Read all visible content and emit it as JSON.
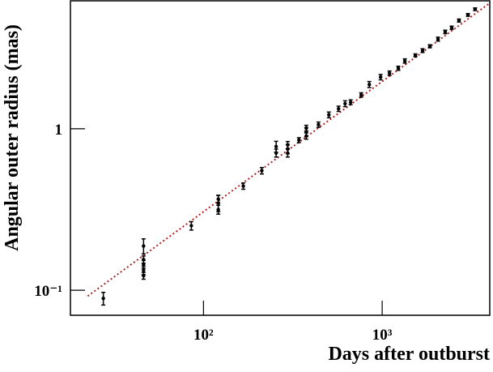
{
  "chart_data": {
    "type": "scatter",
    "x_label": "Days after outburst",
    "y_label": "Angular outer radius (mas)",
    "log_x": true,
    "log_y": true,
    "xlim": [
      18,
      4000
    ],
    "ylim": [
      0.07,
      6.2
    ],
    "xticks": [
      {
        "value": 100,
        "label": "10²"
      },
      {
        "value": 1000,
        "label": "10³"
      }
    ],
    "yticks": [
      {
        "value": 0.1,
        "label": "10⁻¹"
      },
      1
    ],
    "series": [
      {
        "color": "#000000",
        "x": [
          27.5,
          46.2,
          46.2,
          46.2,
          46.2,
          46.2,
          85.5,
          121,
          121,
          121,
          167,
          212,
          255,
          255,
          296,
          296,
          296,
          342,
          376,
          376,
          376,
          440,
          503,
          570,
          620,
          666,
          763,
          847,
          980,
          1099,
          1231,
          1339,
          1534,
          1683,
          1849,
          2053,
          2253,
          2449,
          2690,
          3020,
          3311
        ],
        "values": [
          0.089,
          0.188,
          0.155,
          0.145,
          0.133,
          0.123,
          0.251,
          0.347,
          0.316,
          0.367,
          0.442,
          0.55,
          0.776,
          0.708,
          0.75,
          0.794,
          0.708,
          0.851,
          0.955,
          1.01,
          0.902,
          1.06,
          1.22,
          1.33,
          1.43,
          1.46,
          1.62,
          1.88,
          2.09,
          2.21,
          2.37,
          2.63,
          2.85,
          3.05,
          3.24,
          3.59,
          3.98,
          4.22,
          4.68,
          5.07,
          5.5
        ],
        "errors": [
          0.008,
          0.02,
          0.008,
          0.008,
          0.008,
          0.006,
          0.015,
          0.04,
          0.02,
          0.02,
          0.02,
          0.025,
          0.06,
          0.04,
          0.05,
          0.04,
          0.04,
          0.03,
          0.06,
          0.04,
          0.04,
          0.04,
          0.05,
          0.05,
          0.06,
          0.05,
          0.05,
          0.08,
          0.08,
          0.07,
          0.07,
          0.08,
          0.06,
          0.08,
          0.07,
          0.1,
          0.1,
          0.1,
          0.1,
          0.1,
          0.1
        ]
      }
    ],
    "fit": {
      "color": "#b22222",
      "x": [
        22.5,
        4000
      ],
      "values": [
        0.092,
        6.0
      ]
    }
  }
}
